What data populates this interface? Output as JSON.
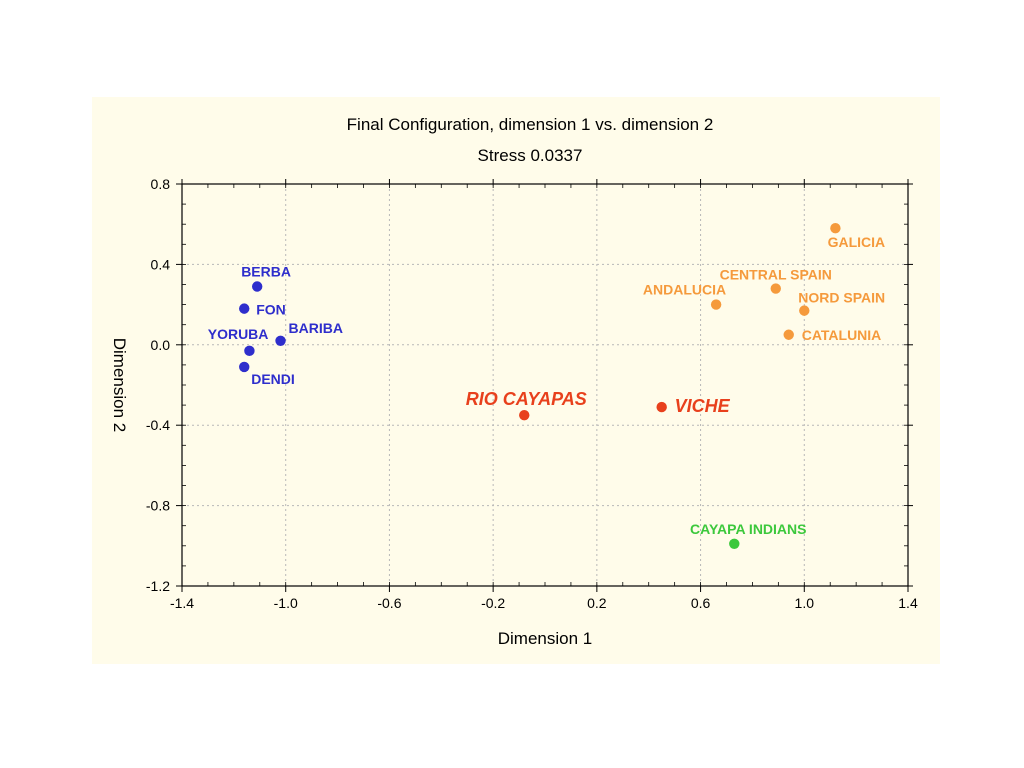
{
  "chart_data": {
    "type": "scatter",
    "title": "Final Configuration, dimension 1 vs. dimension 2",
    "subtitle": "Stress 0.0337",
    "xlabel": "Dimension 1",
    "ylabel": "Dimension 2",
    "xlim": [
      -1.4,
      1.4
    ],
    "ylim": [
      -1.2,
      0.8
    ],
    "xticks": [
      "-1.4",
      "-1.0",
      "-0.6",
      "-0.2",
      "0.2",
      "0.6",
      "1.0",
      "1.4"
    ],
    "yticks": [
      "0.8",
      "0.4",
      "0.0",
      "-0.4",
      "-0.8",
      "-1.2"
    ],
    "grid": true,
    "colors": {
      "african": "#2e2ecc",
      "spanish": "#f59a3c",
      "ecuador": "#e8401c",
      "indian": "#3cc83c"
    },
    "points": [
      {
        "label": "BERBA",
        "x": -1.11,
        "y": 0.29,
        "group": "african"
      },
      {
        "label": "FON",
        "x": -1.16,
        "y": 0.18,
        "group": "african"
      },
      {
        "label": "BARIBA",
        "x": -1.02,
        "y": 0.02,
        "group": "african"
      },
      {
        "label": "YORUBA",
        "x": -1.14,
        "y": -0.03,
        "group": "african"
      },
      {
        "label": "DENDI",
        "x": -1.16,
        "y": -0.11,
        "group": "african"
      },
      {
        "label": "GALICIA",
        "x": 1.12,
        "y": 0.58,
        "group": "spanish"
      },
      {
        "label": "CENTRAL SPAIN",
        "x": 0.89,
        "y": 0.28,
        "group": "spanish"
      },
      {
        "label": "ANDALUCIA",
        "x": 0.66,
        "y": 0.2,
        "group": "spanish"
      },
      {
        "label": "NORD SPAIN",
        "x": 1.0,
        "y": 0.17,
        "group": "spanish"
      },
      {
        "label": "CATALUNIA",
        "x": 0.94,
        "y": 0.05,
        "group": "spanish"
      },
      {
        "label": "RIO CAYAPAS",
        "x": -0.08,
        "y": -0.35,
        "group": "ecuador"
      },
      {
        "label": "VICHE",
        "x": 0.45,
        "y": -0.31,
        "group": "ecuador"
      },
      {
        "label": "CAYAPA INDIANS",
        "x": 0.73,
        "y": -0.99,
        "group": "indian"
      }
    ]
  }
}
